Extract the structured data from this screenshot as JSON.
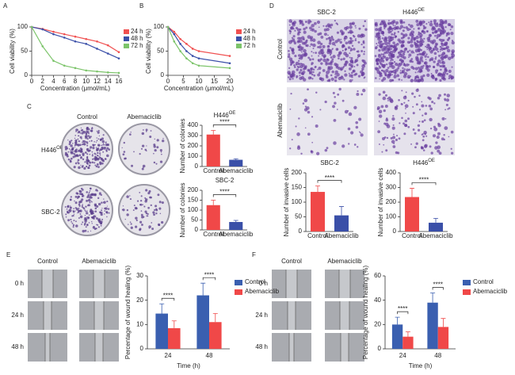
{
  "panels": [
    "A",
    "B",
    "C",
    "D",
    "E",
    "F"
  ],
  "panel_c_images": {
    "columns": [
      "Control",
      "Abemaciclib"
    ],
    "rows": [
      {
        "text": "H446",
        "sup": "OE"
      },
      {
        "text": "SBC-2"
      }
    ]
  },
  "panel_d_images": {
    "columns": [
      {
        "text": "SBC-2"
      },
      {
        "text": "H446",
        "sup": "OE"
      }
    ],
    "rows": [
      "Control",
      "Abemaciclib"
    ]
  },
  "panel_e_images": {
    "columns": [
      "Control",
      "Abemaciclib"
    ],
    "rows": [
      "0 h",
      "24 h",
      "48 h"
    ]
  },
  "panel_f_images": {
    "columns": [
      "Control",
      "Abemaciclib"
    ],
    "rows": [
      "0 h",
      "24 h",
      "48 h"
    ]
  },
  "chart_data": [
    {
      "type": "line",
      "ylabel": "Cell viability (%)",
      "xlabel": "Concentration (μmol/mL)",
      "x": [
        0,
        2,
        4,
        6,
        8,
        10,
        12,
        14,
        16
      ],
      "xlim": [
        0,
        16
      ],
      "xticks": [
        0,
        2,
        4,
        6,
        8,
        10,
        12,
        14,
        16
      ],
      "ylim": [
        0,
        100
      ],
      "yticks": [
        0,
        50,
        100
      ],
      "series": [
        {
          "name": "24 h",
          "color": "#f05050",
          "values": [
            100,
            96,
            90,
            85,
            80,
            75,
            70,
            62,
            48
          ]
        },
        {
          "name": "48 h",
          "color": "#3a4fa8",
          "values": [
            100,
            95,
            85,
            78,
            70,
            65,
            55,
            45,
            35
          ]
        },
        {
          "name": "72 h",
          "color": "#7cc46a",
          "values": [
            100,
            60,
            30,
            20,
            15,
            10,
            8,
            6,
            5
          ]
        }
      ]
    },
    {
      "type": "line",
      "ylabel": "Cell viability (%)",
      "xlabel": "Concentration (μmol/mL)",
      "x": [
        0,
        2,
        4,
        6,
        8,
        10,
        20
      ],
      "xlim": [
        0,
        20
      ],
      "xticks": [
        0,
        5,
        10,
        15,
        20
      ],
      "ylim": [
        0,
        100
      ],
      "yticks": [
        0,
        50,
        100
      ],
      "series": [
        {
          "name": "24 h",
          "color": "#f05050",
          "values": [
            100,
            90,
            75,
            65,
            55,
            50,
            40
          ]
        },
        {
          "name": "48 h",
          "color": "#3a4fa8",
          "values": [
            100,
            85,
            65,
            50,
            40,
            35,
            25
          ]
        },
        {
          "name": "72 h",
          "color": "#7cc46a",
          "values": [
            100,
            70,
            50,
            35,
            25,
            20,
            15
          ]
        }
      ]
    },
    {
      "type": "bar",
      "title": {
        "text": "H446",
        "sup": "OE"
      },
      "categories": [
        "Control",
        "Abemaciclib"
      ],
      "values": [
        310,
        65
      ],
      "errors": [
        40,
        10
      ],
      "colors": [
        "#f04848",
        "#3a4fa8"
      ],
      "ylabel": "Number of colonies",
      "ylim": [
        0,
        400
      ],
      "yticks": [
        0,
        100,
        200,
        300,
        400
      ],
      "significance": "****"
    },
    {
      "type": "bar",
      "title": {
        "text": "SBC-2"
      },
      "categories": [
        "Control",
        "Abemaciclib"
      ],
      "values": [
        125,
        40
      ],
      "errors": [
        25,
        8
      ],
      "colors": [
        "#f04848",
        "#3a4fa8"
      ],
      "ylabel": "Number of colonies",
      "ylim": [
        0,
        200
      ],
      "yticks": [
        0,
        50,
        100,
        150,
        200
      ],
      "significance": "****"
    },
    {
      "type": "bar",
      "title": {
        "text": "SBC-2"
      },
      "categories": [
        "Control",
        "Abemaciclib"
      ],
      "values": [
        135,
        55
      ],
      "errors": [
        20,
        30
      ],
      "colors": [
        "#f04848",
        "#3a4fa8"
      ],
      "ylabel": "Number of invasive cells",
      "ylim": [
        0,
        200
      ],
      "yticks": [
        0,
        50,
        100,
        150,
        200
      ],
      "significance": "****"
    },
    {
      "type": "bar",
      "title": {
        "text": "H446",
        "sup": "OE"
      },
      "categories": [
        "Control",
        "Abemaciclib"
      ],
      "values": [
        235,
        60
      ],
      "errors": [
        60,
        30
      ],
      "colors": [
        "#f04848",
        "#3a4fa8"
      ],
      "ylabel": "Number of invasive cells",
      "ylim": [
        0,
        400
      ],
      "yticks": [
        0,
        100,
        200,
        300,
        400
      ],
      "significance": "****"
    },
    {
      "type": "bar",
      "categories": [
        "24",
        "48"
      ],
      "xlabel": "Time (h)",
      "ylabel": "Percentage of wound healing (%)",
      "ylim": [
        0,
        30
      ],
      "yticks": [
        0,
        10,
        20,
        30
      ],
      "significance": [
        "****",
        "****"
      ],
      "series": [
        {
          "name": "Control",
          "color": "#3a5fb0",
          "values": [
            14.5,
            22
          ],
          "errors": [
            4,
            5
          ]
        },
        {
          "name": "Abemaciclib",
          "color": "#f04848",
          "values": [
            8.5,
            11
          ],
          "errors": [
            3,
            3.5
          ]
        }
      ]
    },
    {
      "type": "bar",
      "categories": [
        "24",
        "48"
      ],
      "xlabel": "Time (h)",
      "ylabel": "Percentage of wound healing (%)",
      "ylim": [
        0,
        60
      ],
      "yticks": [
        0,
        20,
        40,
        60
      ],
      "significance": [
        "****",
        "****"
      ],
      "series": [
        {
          "name": "Control",
          "color": "#3a5fb0",
          "values": [
            20,
            38
          ],
          "errors": [
            6,
            8
          ]
        },
        {
          "name": "Abemaciclib",
          "color": "#f04848",
          "values": [
            10,
            18
          ],
          "errors": [
            4,
            7
          ]
        }
      ]
    }
  ]
}
